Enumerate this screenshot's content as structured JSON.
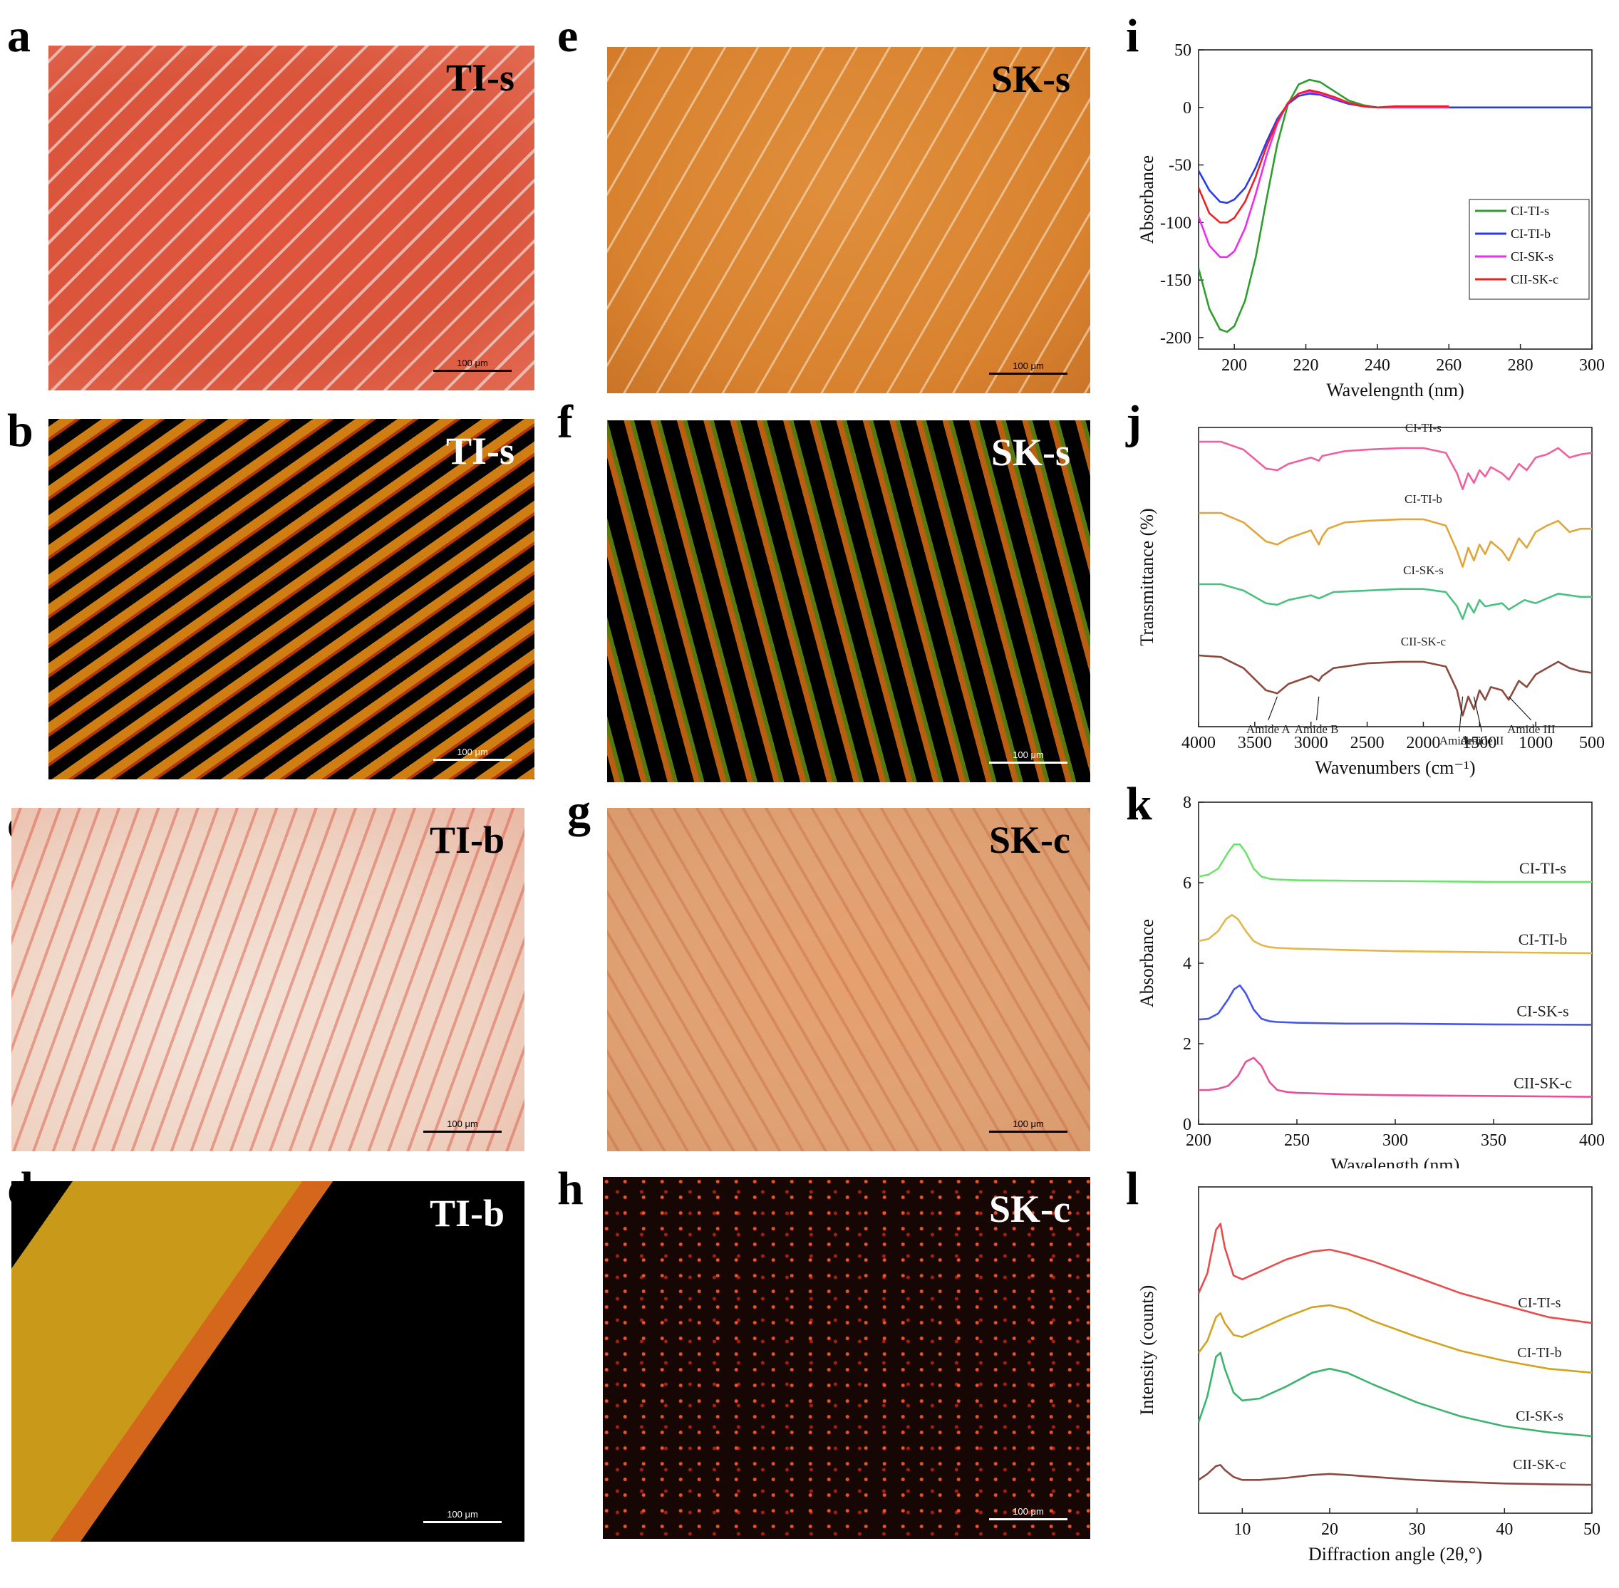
{
  "figure": {
    "panel_letters": [
      "a",
      "b",
      "c",
      "d",
      "e",
      "f",
      "g",
      "h",
      "i",
      "j",
      "k",
      "l"
    ],
    "micrographs": [
      {
        "id": "a",
        "tag": "TI-s",
        "scale": "100 μm",
        "style": "bf-red",
        "tag_color": "#000000",
        "bar_color": "#000000"
      },
      {
        "id": "b",
        "tag": "TI-s",
        "scale": "100 μm",
        "style": "pol-warm",
        "tag_color": "#ffffff",
        "bar_color": "#ffffff"
      },
      {
        "id": "c",
        "tag": "TI-b",
        "scale": "100 μm",
        "style": "bf-pale",
        "tag_color": "#000000",
        "bar_color": "#000000"
      },
      {
        "id": "d",
        "tag": "TI-b",
        "scale": "100 μm",
        "style": "pol-gold",
        "tag_color": "#ffffff",
        "bar_color": "#ffffff"
      },
      {
        "id": "e",
        "tag": "SK-s",
        "scale": "100 μm",
        "style": "bf-orange",
        "tag_color": "#000000",
        "bar_color": "#000000"
      },
      {
        "id": "f",
        "tag": "SK-s",
        "scale": "100 μm",
        "style": "pol-mix",
        "tag_color": "#ffffff",
        "bar_color": "#ffffff"
      },
      {
        "id": "g",
        "tag": "SK-c",
        "scale": "100 μm",
        "style": "bf-tan",
        "tag_color": "#000000",
        "bar_color": "#000000"
      },
      {
        "id": "h",
        "tag": "SK-c",
        "scale": "100 μm",
        "style": "pol-speck",
        "tag_color": "#ffffff",
        "bar_color": "#ffffff"
      }
    ]
  },
  "chart_data": [
    {
      "panel": "i",
      "type": "line",
      "xlabel": "Wavelengnth (nm)",
      "ylabel": "Absorbance",
      "xlim": [
        190,
        300
      ],
      "ylim": [
        -210,
        50
      ],
      "xticks": [
        200,
        220,
        240,
        260,
        280,
        300
      ],
      "yticks": [
        50,
        0,
        -50,
        -100,
        -150,
        -200
      ],
      "legend_position": "right",
      "series": [
        {
          "name": "CI-TI-s",
          "color": "#2e9e2e",
          "x": [
            190,
            193,
            196,
            198,
            200,
            203,
            206,
            209,
            212,
            215,
            218,
            221,
            224,
            228,
            232,
            236,
            240,
            245,
            250,
            260,
            300
          ],
          "values": [
            -140,
            -175,
            -193,
            -195,
            -190,
            -168,
            -130,
            -80,
            -32,
            3,
            20,
            24,
            22,
            14,
            6,
            2,
            0,
            0,
            0,
            0,
            0
          ]
        },
        {
          "name": "CI-TI-b",
          "color": "#2a3af0",
          "x": [
            190,
            193,
            196,
            198,
            200,
            203,
            206,
            209,
            212,
            215,
            218,
            221,
            224,
            228,
            232,
            236,
            240,
            245,
            250,
            260,
            300
          ],
          "values": [
            -55,
            -72,
            -82,
            -83,
            -80,
            -70,
            -52,
            -30,
            -10,
            3,
            10,
            12,
            11,
            7,
            3,
            1,
            0,
            0,
            0,
            0,
            0
          ]
        },
        {
          "name": "CI-SK-s",
          "color": "#ee2bf0",
          "x": [
            190,
            193,
            196,
            198,
            200,
            203,
            206,
            209,
            212,
            215,
            218,
            221,
            224,
            228,
            232,
            236,
            240,
            245,
            250,
            260
          ],
          "values": [
            -95,
            -120,
            -130,
            -130,
            -125,
            -105,
            -75,
            -42,
            -14,
            4,
            12,
            14,
            12,
            8,
            4,
            1,
            0,
            0,
            0,
            0
          ]
        },
        {
          "name": "CII-SK-c",
          "color": "#f02020",
          "x": [
            190,
            193,
            196,
            198,
            200,
            203,
            206,
            209,
            212,
            215,
            218,
            221,
            224,
            228,
            232,
            236,
            240,
            245,
            250,
            260
          ],
          "values": [
            -70,
            -92,
            -100,
            -100,
            -96,
            -82,
            -60,
            -34,
            -12,
            4,
            12,
            15,
            13,
            9,
            4,
            1,
            0,
            1,
            1,
            1
          ]
        }
      ]
    },
    {
      "panel": "j",
      "type": "line",
      "xlabel": "Wavenumbers (cm⁻¹)",
      "ylabel": "Transmittance (%)",
      "xlim": [
        4000,
        500
      ],
      "xticks": [
        4000,
        3500,
        3000,
        2500,
        2000,
        1500,
        1000,
        500
      ],
      "y_axis_labels_shown": false,
      "series": [
        {
          "name": "CI-TI-s",
          "color": "#f060a0",
          "label": "CI-TI-s",
          "x": [
            4000,
            3800,
            3600,
            3400,
            3300,
            3200,
            3000,
            2930,
            2900,
            2700,
            2500,
            2200,
            2000,
            1800,
            1700,
            1650,
            1600,
            1550,
            1500,
            1450,
            1400,
            1300,
            1240,
            1150,
            1080,
            1000,
            900,
            800,
            700,
            600,
            500
          ],
          "values": [
            100,
            100,
            95,
            83,
            82,
            86,
            90,
            88,
            91,
            94,
            95,
            96,
            96,
            93,
            80,
            70,
            80,
            74,
            82,
            78,
            84,
            80,
            76,
            86,
            82,
            90,
            92,
            96,
            90,
            92,
            93
          ]
        },
        {
          "name": "CI-TI-b",
          "color": "#e0a63a",
          "label": "CI-TI-b",
          "x": [
            4000,
            3800,
            3600,
            3400,
            3300,
            3200,
            3000,
            2930,
            2900,
            2850,
            2700,
            2500,
            2200,
            2000,
            1800,
            1700,
            1650,
            1600,
            1550,
            1500,
            1450,
            1400,
            1300,
            1240,
            1150,
            1080,
            1000,
            900,
            800,
            700,
            600,
            500
          ],
          "values": [
            100,
            100,
            94,
            82,
            80,
            84,
            89,
            80,
            85,
            90,
            94,
            95,
            96,
            96,
            92,
            76,
            66,
            78,
            70,
            80,
            74,
            82,
            76,
            70,
            84,
            78,
            88,
            92,
            95,
            88,
            90,
            90
          ]
        },
        {
          "name": "CI-SK-s",
          "color": "#4cc080",
          "label": "CI-SK-s",
          "x": [
            4000,
            3800,
            3600,
            3400,
            3300,
            3200,
            3000,
            2930,
            2800,
            2500,
            2200,
            2000,
            1800,
            1700,
            1650,
            1600,
            1550,
            1500,
            1450,
            1300,
            1240,
            1100,
            1000,
            800,
            600,
            500
          ],
          "values": [
            100,
            100,
            96,
            88,
            87,
            90,
            93,
            91,
            95,
            96,
            97,
            97,
            95,
            86,
            78,
            88,
            82,
            90,
            86,
            88,
            84,
            90,
            88,
            94,
            92,
            92
          ]
        },
        {
          "name": "CII-SK-c",
          "color": "#8a4a3c",
          "label": "CII-SK-c",
          "x": [
            4000,
            3800,
            3600,
            3400,
            3300,
            3200,
            3000,
            2930,
            2900,
            2800,
            2500,
            2200,
            2000,
            1800,
            1700,
            1650,
            1600,
            1550,
            1500,
            1450,
            1400,
            1300,
            1240,
            1150,
            1080,
            1000,
            900,
            800,
            700,
            600,
            500
          ],
          "values": [
            100,
            99,
            92,
            78,
            76,
            82,
            87,
            84,
            87,
            92,
            95,
            96,
            96,
            93,
            78,
            62,
            74,
            66,
            78,
            72,
            80,
            78,
            72,
            84,
            80,
            88,
            92,
            96,
            92,
            90,
            89
          ]
        }
      ],
      "annotations": [
        "Amide A",
        "Amide B",
        "Amide I",
        "Amide II",
        "Amide III"
      ]
    },
    {
      "panel": "k",
      "type": "line",
      "xlabel": "Wavelength (nm)",
      "ylabel": "Absorbance",
      "xlim": [
        200,
        400
      ],
      "ylim": [
        0,
        8
      ],
      "xticks": [
        200,
        250,
        300,
        350,
        400
      ],
      "yticks": [
        0,
        2,
        4,
        6,
        8
      ],
      "series": [
        {
          "name": "CI-TI-s",
          "color": "#6de36d",
          "label": "CI-TI-s",
          "x": [
            200,
            205,
            210,
            215,
            218,
            221,
            224,
            228,
            232,
            236,
            240,
            250,
            275,
            300,
            350,
            400
          ],
          "values": [
            6.15,
            6.2,
            6.35,
            6.75,
            6.95,
            6.95,
            6.75,
            6.35,
            6.15,
            6.1,
            6.08,
            6.06,
            6.05,
            6.04,
            6.02,
            6.02
          ]
        },
        {
          "name": "CI-TI-b",
          "color": "#e2b64a",
          "label": "CI-TI-b",
          "x": [
            200,
            205,
            210,
            214,
            217,
            220,
            224,
            228,
            232,
            236,
            240,
            250,
            275,
            300,
            350,
            400
          ],
          "values": [
            4.55,
            4.6,
            4.8,
            5.1,
            5.2,
            5.1,
            4.8,
            4.55,
            4.45,
            4.4,
            4.38,
            4.36,
            4.33,
            4.3,
            4.27,
            4.25
          ]
        },
        {
          "name": "CI-SK-s",
          "color": "#4455ee",
          "label": "CI-SK-s",
          "x": [
            200,
            205,
            210,
            215,
            218,
            221,
            224,
            228,
            232,
            236,
            240,
            250,
            275,
            300,
            350,
            400
          ],
          "values": [
            2.6,
            2.62,
            2.75,
            3.1,
            3.35,
            3.45,
            3.25,
            2.85,
            2.62,
            2.56,
            2.54,
            2.52,
            2.5,
            2.5,
            2.48,
            2.47
          ]
        },
        {
          "name": "CII-SK-c",
          "color": "#e8509a",
          "label": "CII-SK-c",
          "x": [
            200,
            205,
            210,
            215,
            220,
            224,
            228,
            232,
            236,
            240,
            245,
            250,
            275,
            300,
            350,
            400
          ],
          "values": [
            0.85,
            0.85,
            0.88,
            0.95,
            1.2,
            1.55,
            1.65,
            1.45,
            1.05,
            0.85,
            0.8,
            0.78,
            0.74,
            0.72,
            0.7,
            0.68
          ]
        }
      ]
    },
    {
      "panel": "l",
      "type": "line",
      "xlabel": "Diffraction angle (2θ,°)",
      "ylabel": "Intensity (counts)",
      "xlim": [
        5,
        50
      ],
      "xticks": [
        10,
        20,
        30,
        40,
        50
      ],
      "y_axis_labels_shown": false,
      "series": [
        {
          "name": "CI-TI-s",
          "color": "#e84c4c",
          "label": "CI-TI-s",
          "x": [
            5,
            6,
            7,
            7.5,
            8,
            9,
            10,
            12,
            15,
            18,
            20,
            22,
            25,
            30,
            35,
            40,
            45,
            50
          ],
          "values": [
            10,
            11,
            13.2,
            13.5,
            12.3,
            10.9,
            10.7,
            11.1,
            11.7,
            12.1,
            12.2,
            12.0,
            11.6,
            10.8,
            10.0,
            9.4,
            8.8,
            8.5
          ]
        },
        {
          "name": "CI-TI-b",
          "color": "#d4a21c",
          "label": "CI-TI-b",
          "x": [
            5,
            6,
            7,
            7.5,
            8,
            9,
            10,
            12,
            15,
            18,
            20,
            22,
            25,
            30,
            35,
            40,
            45,
            50
          ],
          "values": [
            7,
            7.6,
            8.8,
            9.0,
            8.5,
            7.9,
            7.8,
            8.2,
            8.8,
            9.3,
            9.4,
            9.2,
            8.6,
            7.8,
            7.1,
            6.6,
            6.2,
            6.0
          ]
        },
        {
          "name": "CI-SK-s",
          "color": "#3cb46e",
          "label": "CI-SK-s",
          "x": [
            5,
            6,
            7,
            7.5,
            8,
            9,
            10,
            12,
            15,
            18,
            20,
            22,
            25,
            30,
            35,
            40,
            45,
            50
          ],
          "values": [
            3.5,
            4.8,
            6.8,
            7.0,
            6.2,
            5.0,
            4.6,
            4.7,
            5.3,
            6.0,
            6.2,
            6.0,
            5.4,
            4.5,
            3.8,
            3.3,
            3.0,
            2.8
          ]
        },
        {
          "name": "CII-SK-c",
          "color": "#8a4a42",
          "label": "CII-SK-c",
          "x": [
            5,
            6,
            7,
            7.5,
            8,
            9,
            10,
            12,
            15,
            18,
            20,
            22,
            25,
            30,
            35,
            40,
            45,
            50
          ],
          "values": [
            0.6,
            0.9,
            1.3,
            1.35,
            1.1,
            0.75,
            0.6,
            0.6,
            0.7,
            0.85,
            0.9,
            0.85,
            0.75,
            0.6,
            0.5,
            0.42,
            0.38,
            0.35
          ]
        }
      ]
    }
  ]
}
